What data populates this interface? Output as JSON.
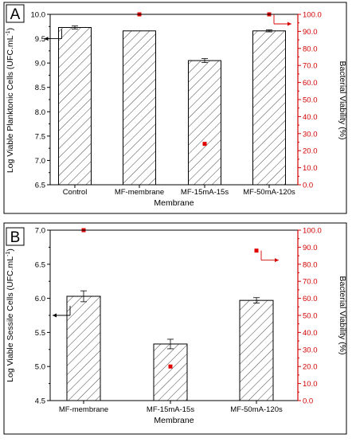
{
  "colors": {
    "left_axis": "#000000",
    "right_axis": "#d40000",
    "points": "#e00000",
    "hatch": "#333333"
  },
  "chart_data": [
    {
      "panel_label": "A",
      "type": "bar",
      "categories": [
        "Control",
        "MF-membrane",
        "MF-15mA-15s",
        "MF-50mA-120s"
      ],
      "xlabel": "Membrane",
      "ylabel": "Log Viable Planktonic Cells (UFC.mL",
      "ylabel_superscript": "-1",
      "ylabel_close": ")",
      "ylim": [
        6.5,
        10.0
      ],
      "yticks": [
        "6.5",
        "7.0",
        "7.5",
        "8.0",
        "8.5",
        "9.0",
        "9.5",
        "10.0"
      ],
      "y2label": "Bacterial Viability (%)",
      "y2lim": [
        0,
        100
      ],
      "y2ticks": [
        "0.0",
        "10.0",
        "20.0",
        "30.0",
        "40.0",
        "50.0",
        "60.0",
        "70.0",
        "80.0",
        "90.0",
        "100.0"
      ],
      "series": [
        {
          "axis": "left",
          "kind": "bar_hatched",
          "values": [
            9.73,
            9.66,
            9.05,
            9.66
          ],
          "errors": [
            0.03,
            0.0,
            0.04,
            0.02
          ]
        },
        {
          "axis": "right",
          "kind": "scatter",
          "x_categories": [
            "MF-membrane",
            "MF-15mA-15s",
            "MF-50mA-120s"
          ],
          "values": [
            100,
            24,
            100
          ]
        }
      ],
      "grid": false
    },
    {
      "panel_label": "B",
      "type": "bar",
      "categories": [
        "MF-membrane",
        "MF-15mA-15s",
        "MF-50mA-120s"
      ],
      "xlabel": "Membrane",
      "ylabel": "Log Viable Sessile Cells (UFC.mL",
      "ylabel_superscript": "-1",
      "ylabel_close": ")",
      "ylim": [
        4.5,
        7.0
      ],
      "yticks": [
        "4.5",
        "5.0",
        "5.5",
        "6.0",
        "6.5",
        "7.0"
      ],
      "y2label": "Bacterial Viability (%)",
      "y2lim": [
        0,
        100
      ],
      "y2ticks": [
        "0.0",
        "10.0",
        "20.0",
        "30.0",
        "40.0",
        "50.0",
        "60.0",
        "70.0",
        "80.0",
        "90.0",
        "100.0"
      ],
      "series": [
        {
          "axis": "left",
          "kind": "bar_hatched",
          "values": [
            6.03,
            5.33,
            5.97
          ],
          "errors": [
            0.08,
            0.07,
            0.04
          ]
        },
        {
          "axis": "right",
          "kind": "scatter",
          "x_categories": [
            "MF-membrane",
            "MF-15mA-15s",
            "MF-50mA-120s"
          ],
          "values": [
            100,
            20,
            88
          ]
        }
      ],
      "grid": false
    }
  ]
}
